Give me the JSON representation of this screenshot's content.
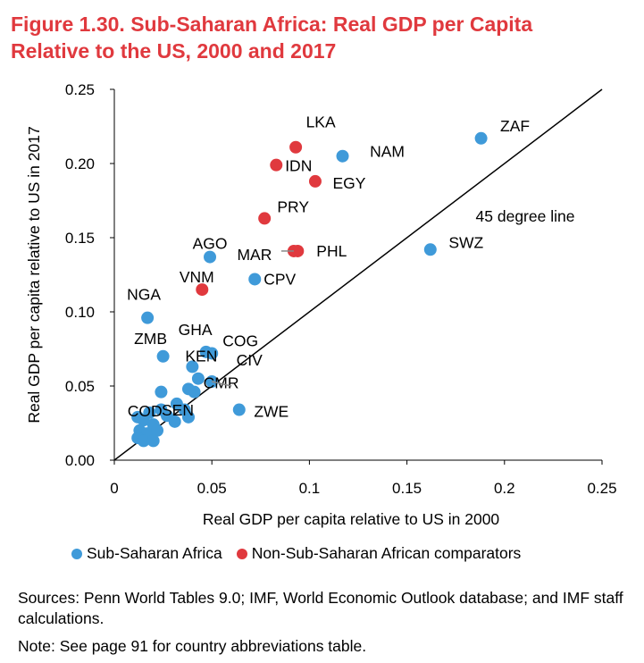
{
  "title_line1": "Figure 1.30. Sub-Saharan Africa: Real GDP per Capita",
  "title_line2": "Relative to the US, 2000 and 2017",
  "colors": {
    "ssa": "#3f9ad9",
    "non_ssa": "#e0393e",
    "title": "#e0393e"
  },
  "chart_data": {
    "type": "scatter",
    "xlabel": "Real GDP per capita relative to US in 2000",
    "ylabel": "Real GDP per capita relative to US in 2017",
    "xlim": [
      0,
      0.25
    ],
    "ylim": [
      0,
      0.25
    ],
    "x_ticks": [
      {
        "value": 0,
        "label": "0"
      },
      {
        "value": 0.05,
        "label": "0.05"
      },
      {
        "value": 0.1,
        "label": "0.1"
      },
      {
        "value": 0.15,
        "label": "0.15"
      },
      {
        "value": 0.2,
        "label": "0.2"
      },
      {
        "value": 0.25,
        "label": "0.25"
      }
    ],
    "y_ticks": [
      {
        "value": 0,
        "label": "0.00"
      },
      {
        "value": 0.05,
        "label": "0.05"
      },
      {
        "value": 0.1,
        "label": "0.10"
      },
      {
        "value": 0.15,
        "label": "0.15"
      },
      {
        "value": 0.2,
        "label": "0.20"
      },
      {
        "value": 0.25,
        "label": "0.25"
      }
    ],
    "reference_line_label": "45 degree line",
    "series": [
      {
        "name": "Sub-Saharan Africa",
        "points": [
          {
            "x": 0.188,
            "y": 0.217,
            "label": "ZAF"
          },
          {
            "x": 0.117,
            "y": 0.205,
            "label": "NAM"
          },
          {
            "x": 0.162,
            "y": 0.142,
            "label": "SWZ"
          },
          {
            "x": 0.049,
            "y": 0.137,
            "label": "AGO"
          },
          {
            "x": 0.072,
            "y": 0.122,
            "label": "CPV"
          },
          {
            "x": 0.017,
            "y": 0.096,
            "label": "NGA"
          },
          {
            "x": 0.025,
            "y": 0.07,
            "label": "ZMB"
          },
          {
            "x": 0.047,
            "y": 0.073,
            "label": "GHA"
          },
          {
            "x": 0.05,
            "y": 0.072,
            "label": "COG"
          },
          {
            "x": 0.05,
            "y": 0.053,
            "label": "CIV"
          },
          {
            "x": 0.04,
            "y": 0.063,
            "label": "KEN"
          },
          {
            "x": 0.064,
            "y": 0.034,
            "label": "ZWE"
          },
          {
            "x": 0.041,
            "y": 0.046,
            "label": "CMR"
          },
          {
            "x": 0.038,
            "y": 0.029,
            "label": "SEN"
          },
          {
            "x": 0.012,
            "y": 0.029,
            "label": "COD"
          },
          {
            "x": 0.043,
            "y": 0.055,
            "label": ""
          },
          {
            "x": 0.038,
            "y": 0.048,
            "label": ""
          },
          {
            "x": 0.024,
            "y": 0.046,
            "label": ""
          },
          {
            "x": 0.032,
            "y": 0.038,
            "label": ""
          },
          {
            "x": 0.036,
            "y": 0.034,
            "label": ""
          },
          {
            "x": 0.024,
            "y": 0.034,
            "label": ""
          },
          {
            "x": 0.018,
            "y": 0.032,
            "label": ""
          },
          {
            "x": 0.027,
            "y": 0.03,
            "label": ""
          },
          {
            "x": 0.015,
            "y": 0.027,
            "label": ""
          },
          {
            "x": 0.02,
            "y": 0.024,
            "label": ""
          },
          {
            "x": 0.031,
            "y": 0.026,
            "label": ""
          },
          {
            "x": 0.013,
            "y": 0.02,
            "label": ""
          },
          {
            "x": 0.017,
            "y": 0.018,
            "label": ""
          },
          {
            "x": 0.022,
            "y": 0.02,
            "label": ""
          },
          {
            "x": 0.012,
            "y": 0.015,
            "label": ""
          },
          {
            "x": 0.015,
            "y": 0.013,
            "label": ""
          },
          {
            "x": 0.02,
            "y": 0.013,
            "label": ""
          }
        ]
      },
      {
        "name": "Non-Sub-Saharan African comparators",
        "points": [
          {
            "x": 0.093,
            "y": 0.211,
            "label": "LKA"
          },
          {
            "x": 0.083,
            "y": 0.199,
            "label": "IDN"
          },
          {
            "x": 0.103,
            "y": 0.188,
            "label": "EGY"
          },
          {
            "x": 0.077,
            "y": 0.163,
            "label": "PRY"
          },
          {
            "x": 0.094,
            "y": 0.141,
            "label": "PHL"
          },
          {
            "x": 0.092,
            "y": 0.141,
            "label": "MAR"
          },
          {
            "x": 0.045,
            "y": 0.115,
            "label": "VNM"
          }
        ]
      }
    ]
  },
  "legend": {
    "ssa_label": "Sub-Saharan Africa",
    "non_ssa_label": "Non-Sub-Saharan African comparators"
  },
  "sources": "Sources: Penn World Tables 9.0; IMF, World Economic Outlook database; and IMF staff calculations.",
  "note": "Note: See page 91 for country abbreviations table."
}
